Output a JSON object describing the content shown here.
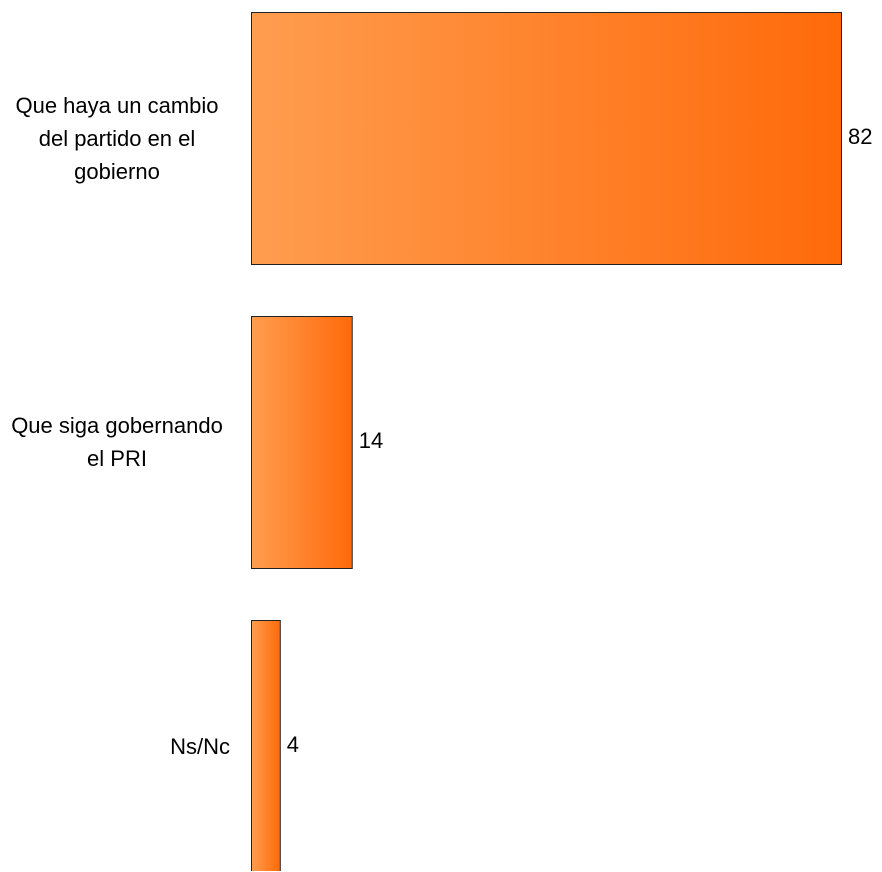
{
  "chart_data": {
    "type": "bar",
    "orientation": "horizontal",
    "categories": [
      "Que haya un cambio del partido en el gobierno",
      "Que siga gobernando el PRI",
      "Ns/Nc"
    ],
    "values": [
      82,
      14,
      4
    ],
    "color": "#ff6600"
  }
}
